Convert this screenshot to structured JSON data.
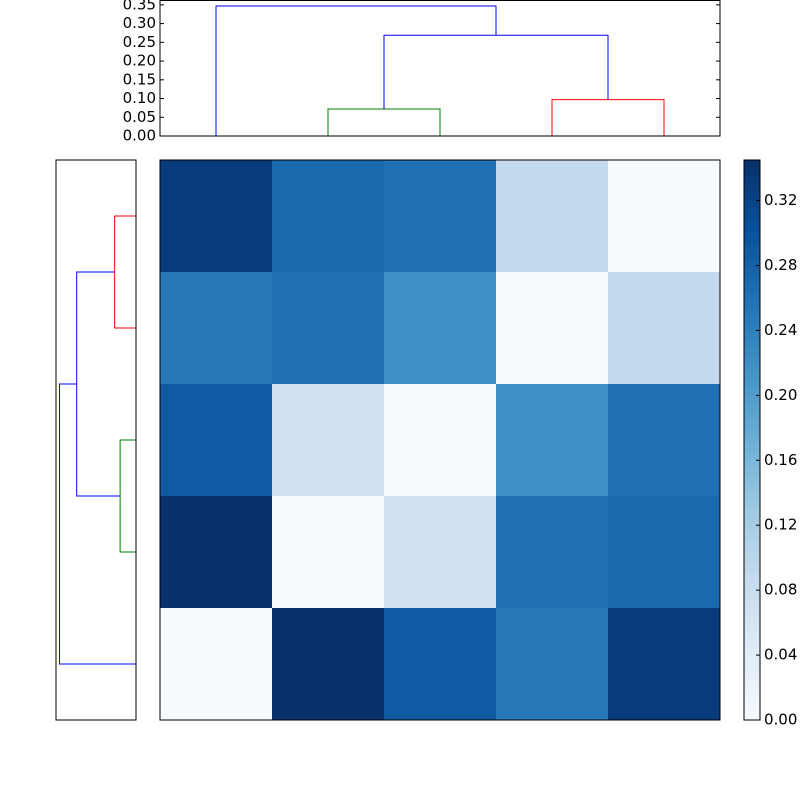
{
  "chart_data": {
    "type": "heatmap",
    "matrix": [
      [
        0.33,
        0.27,
        0.26,
        0.09,
        0.0
      ],
      [
        0.25,
        0.26,
        0.22,
        0.0,
        0.09
      ],
      [
        0.29,
        0.07,
        0.0,
        0.22,
        0.26
      ],
      [
        0.345,
        0.0,
        0.07,
        0.26,
        0.27
      ],
      [
        0.0,
        0.345,
        0.29,
        0.25,
        0.33
      ]
    ],
    "colormap": [
      "#f7fbff",
      "#deebf7",
      "#c6dbef",
      "#9ecae1",
      "#6baed6",
      "#4292c6",
      "#2171b5",
      "#08519c",
      "#08306b"
    ],
    "clim": [
      0,
      0.345
    ],
    "colorbar_ticks": [
      {
        "value": 0.0,
        "label": "0.00"
      },
      {
        "value": 0.04,
        "label": "0.04"
      },
      {
        "value": 0.08,
        "label": "0.08"
      },
      {
        "value": 0.12,
        "label": "0.12"
      },
      {
        "value": 0.16,
        "label": "0.16"
      },
      {
        "value": 0.2,
        "label": "0.20"
      },
      {
        "value": 0.24,
        "label": "0.24"
      },
      {
        "value": 0.28,
        "label": "0.28"
      },
      {
        "value": 0.32,
        "label": "0.32"
      }
    ],
    "dendrogram": {
      "links": [
        {
          "children": [
            1,
            2
          ],
          "height": 0.072,
          "color": "#008000"
        },
        {
          "children": [
            3,
            4
          ],
          "height": 0.097,
          "color": "#ff0000"
        },
        {
          "children": [
            5,
            6
          ],
          "height": 0.269,
          "color": "#0000ff"
        },
        {
          "children": [
            0,
            7
          ],
          "height": 0.347,
          "color": "#0000ff"
        }
      ],
      "ylim": [
        0,
        0.363
      ],
      "yticks": [
        {
          "value": 0.0,
          "label": "0.00"
        },
        {
          "value": 0.05,
          "label": "0.05"
        },
        {
          "value": 0.1,
          "label": "0.10"
        },
        {
          "value": 0.15,
          "label": "0.15"
        },
        {
          "value": 0.2,
          "label": "0.20"
        },
        {
          "value": 0.25,
          "label": "0.25"
        },
        {
          "value": 0.3,
          "label": "0.30"
        },
        {
          "value": 0.35,
          "label": "0.35"
        }
      ]
    }
  }
}
